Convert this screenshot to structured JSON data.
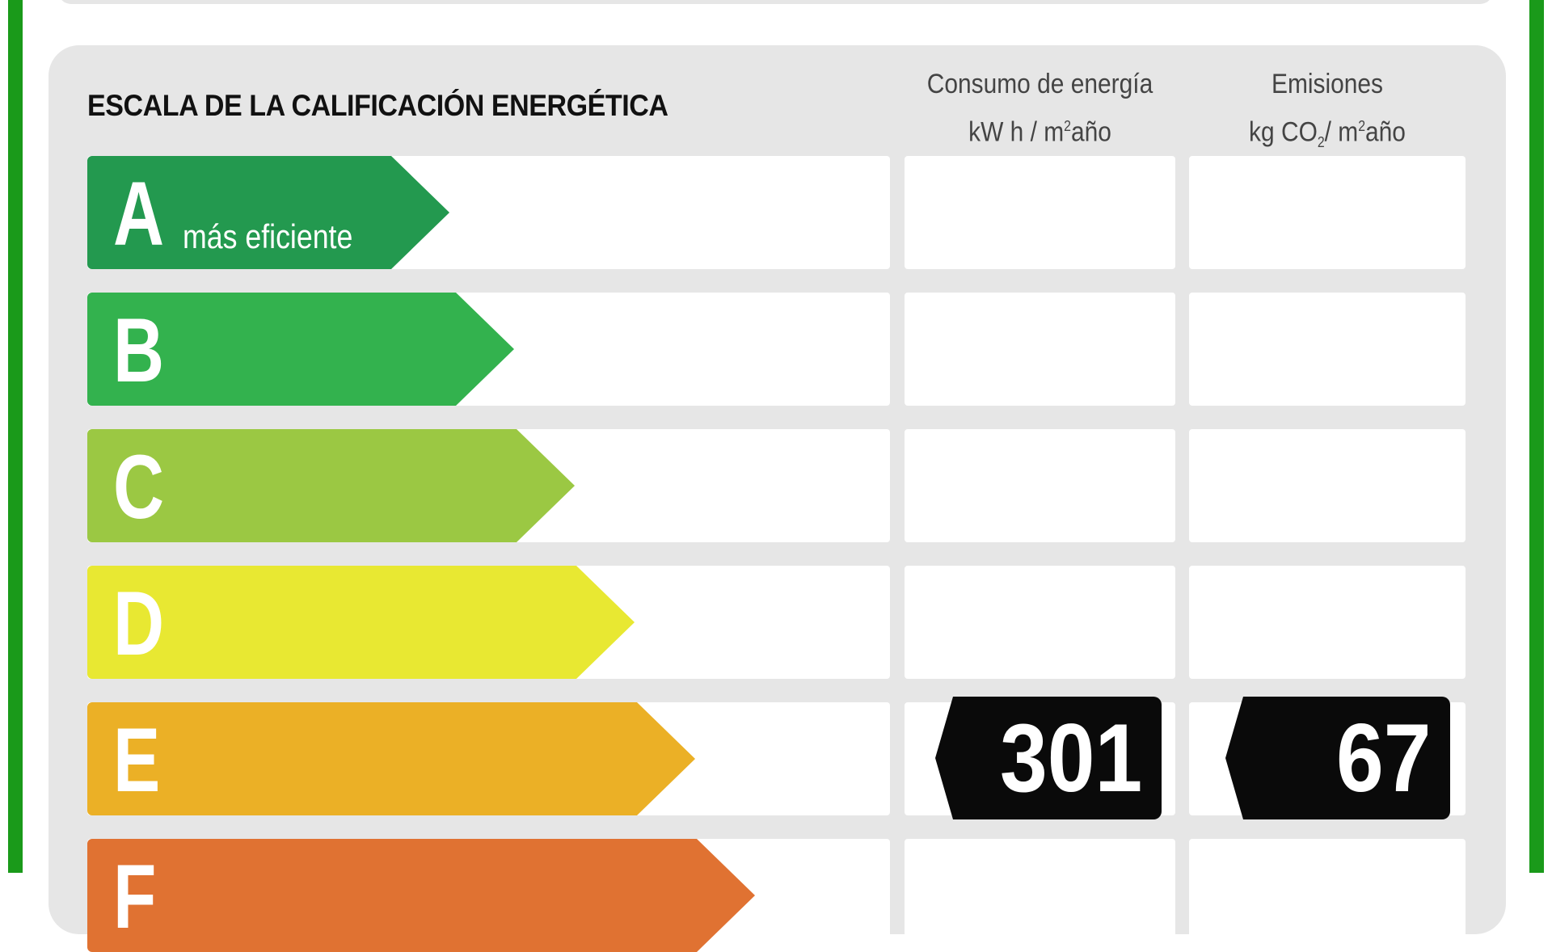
{
  "title": "ESCALA DE LA CALIFICACIÓN ENERGÉTICA",
  "columns": {
    "consumo": {
      "line1": "Consumo de energía",
      "line2_pre": "kW h / m",
      "line2_sup": "2",
      "line2_post": "año"
    },
    "emisiones": {
      "line1": "Emisiones",
      "line2_pre": "kg CO",
      "line2_sub": "2",
      "line2_mid": "/ m",
      "line2_sup": "2",
      "line2_post": "año"
    }
  },
  "ratings": [
    {
      "letter": "A",
      "sublabel": "más eficiente",
      "color": "#23994f"
    },
    {
      "letter": "B",
      "sublabel": "",
      "color": "#33b24e"
    },
    {
      "letter": "C",
      "sublabel": "",
      "color": "#9bc843"
    },
    {
      "letter": "D",
      "sublabel": "",
      "color": "#e8e832"
    },
    {
      "letter": "E",
      "sublabel": "",
      "color": "#ebb026"
    },
    {
      "letter": "F",
      "sublabel": "",
      "color": "#e07232"
    }
  ],
  "result": {
    "rating": "E",
    "consumo_value": "301",
    "emisiones_value": "67"
  }
}
